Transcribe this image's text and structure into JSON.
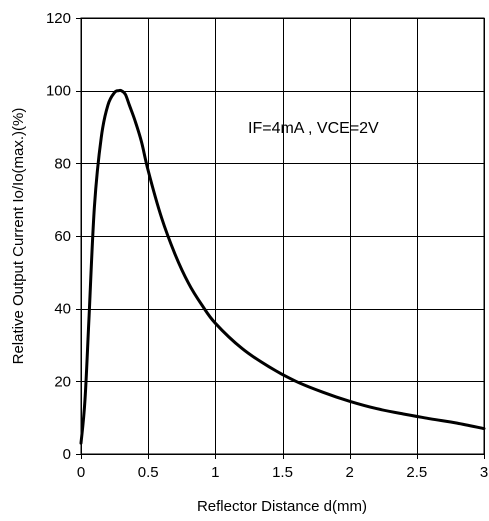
{
  "chart_data": {
    "type": "line",
    "title": "",
    "xlabel": "Reflector Distance d(mm)",
    "ylabel": "Relative Output Current Io/Io(max.)(%)",
    "xlim": [
      0,
      3
    ],
    "ylim": [
      0,
      120
    ],
    "xticks": [
      0,
      0.5,
      1,
      1.5,
      2,
      2.5,
      3
    ],
    "xtick_labels": [
      "0",
      "0.5",
      "1",
      "1.5",
      "2",
      "2.5",
      "3"
    ],
    "yticks": [
      0,
      20,
      40,
      60,
      80,
      100,
      120
    ],
    "ytick_labels": [
      "0",
      "20",
      "40",
      "60",
      "80",
      "100",
      "120"
    ],
    "grid": true,
    "annotation": "IF=4mA , VCE=2V",
    "line_color": "#000000",
    "series": [
      {
        "x": [
          0,
          0.03,
          0.06,
          0.1,
          0.15,
          0.2,
          0.25,
          0.28,
          0.3,
          0.33,
          0.36,
          0.4,
          0.45,
          0.5,
          0.6,
          0.7,
          0.8,
          0.9,
          1.0,
          1.2,
          1.4,
          1.6,
          1.8,
          2.0,
          2.2,
          2.4,
          2.6,
          2.8,
          3.0
        ],
        "y": [
          3,
          15,
          38,
          68,
          87,
          96,
          99.5,
          100,
          100,
          99,
          96,
          92,
          86,
          78,
          65,
          55,
          47,
          41,
          36,
          29,
          24,
          20,
          17,
          14.5,
          12.5,
          11,
          9.7,
          8.5,
          7
        ]
      }
    ]
  }
}
